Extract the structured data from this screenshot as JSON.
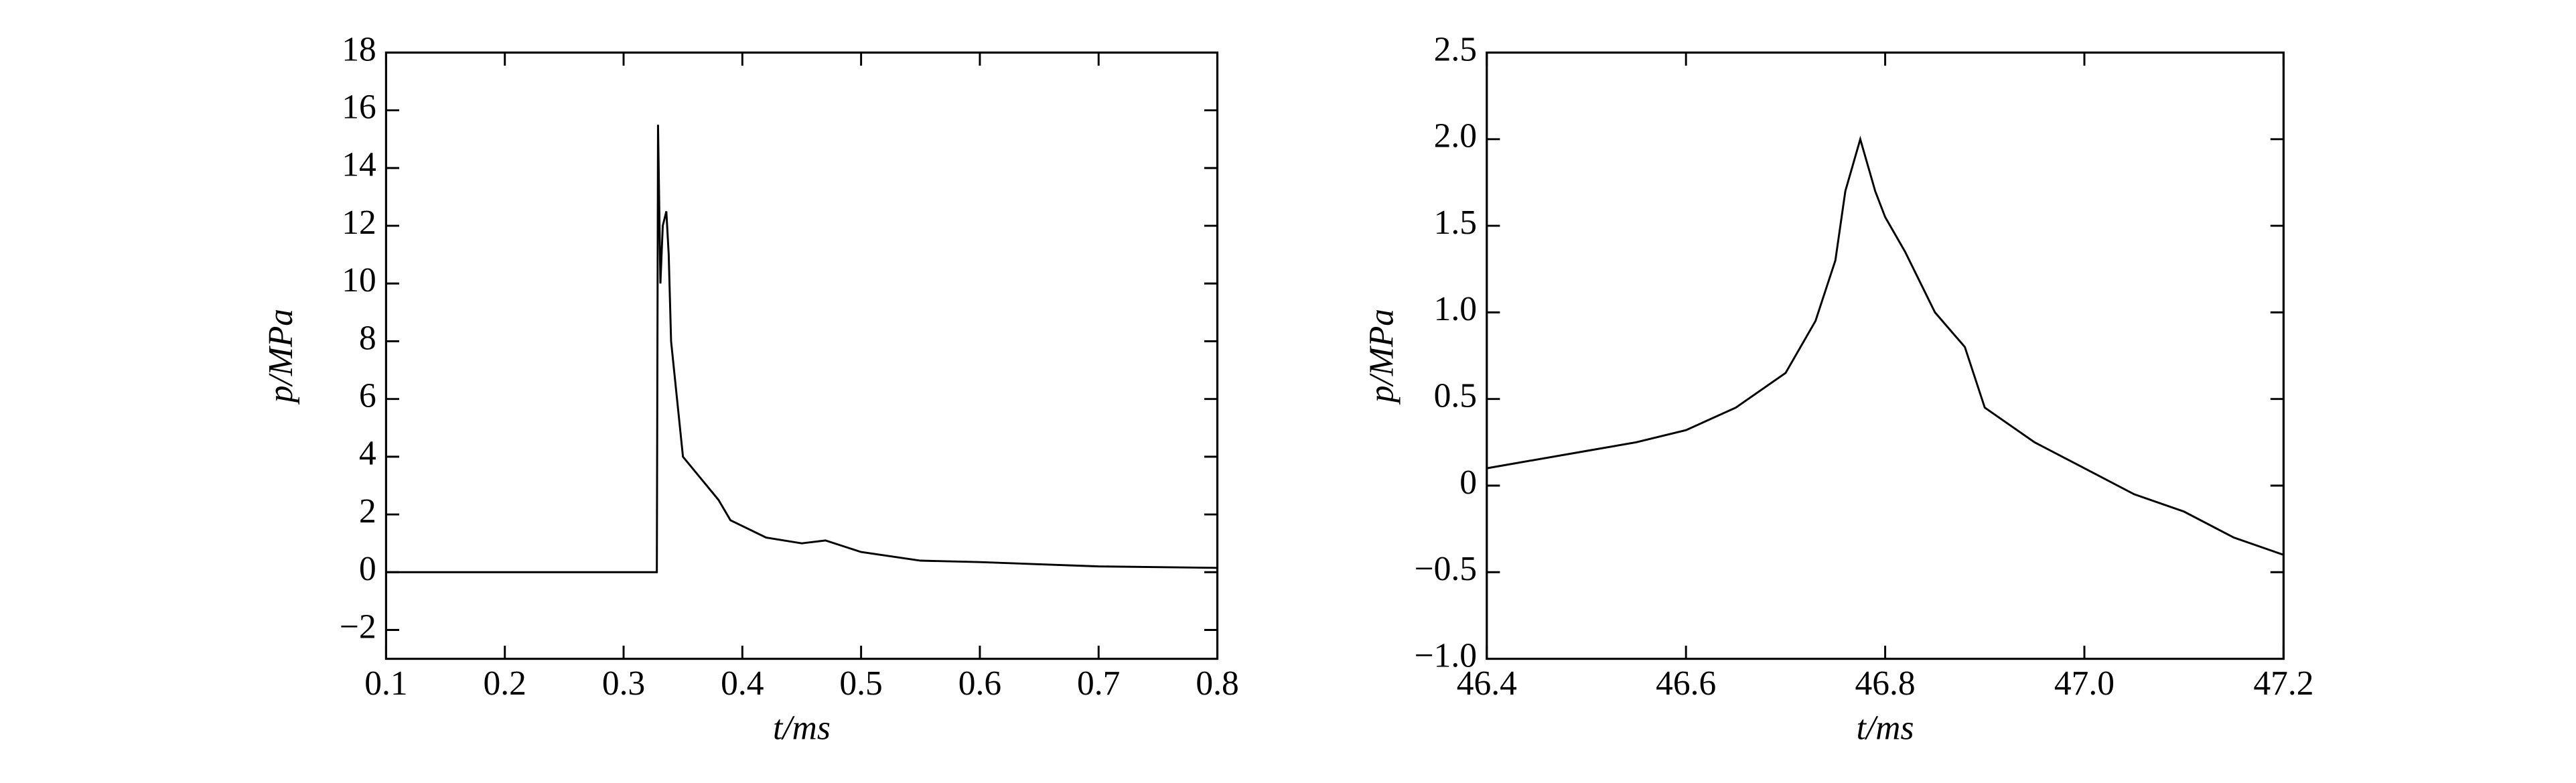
{
  "chart_data": [
    {
      "type": "line",
      "xlabel": "t/ms",
      "ylabel": "p/MPa",
      "xlim": [
        0.1,
        0.8
      ],
      "xticks": [
        0.1,
        0.2,
        0.3,
        0.4,
        0.5,
        0.6,
        0.7,
        0.8
      ],
      "ylim": [
        -3,
        18
      ],
      "yticks": [
        {
          "value": -2,
          "label": "−2"
        },
        0,
        2,
        4,
        6,
        8,
        10,
        12,
        14,
        16,
        18
      ],
      "series": [
        {
          "color": "#000000",
          "x": [
            0.1,
            0.15,
            0.2,
            0.25,
            0.3,
            0.328,
            0.329,
            0.331,
            0.333,
            0.336,
            0.338,
            0.34,
            0.345,
            0.35,
            0.36,
            0.37,
            0.38,
            0.39,
            0.4,
            0.42,
            0.45,
            0.47,
            0.5,
            0.55,
            0.6,
            0.7,
            0.8
          ],
          "values": [
            0,
            0,
            0,
            0,
            0,
            0,
            15.5,
            10,
            12,
            12.5,
            11,
            8,
            6,
            4,
            3.5,
            3,
            2.5,
            1.8,
            1.6,
            1.2,
            1,
            1.1,
            0.7,
            0.4,
            0.35,
            0.2,
            0.15
          ]
        }
      ]
    },
    {
      "type": "line",
      "xlabel": "t/ms",
      "ylabel": "p/MPa",
      "xlim": [
        46.4,
        47.2
      ],
      "xticks": [
        46.4,
        46.6,
        46.8,
        {
          "value": 47,
          "label": "47.0"
        },
        47.2
      ],
      "ylim": [
        -1,
        2.5
      ],
      "yticks": [
        {
          "value": -1,
          "label": "−1.0"
        },
        {
          "value": -0.5,
          "label": "−0.5"
        },
        0,
        0.5,
        {
          "value": 1,
          "label": "1.0"
        },
        1.5,
        {
          "value": 2,
          "label": "2.0"
        },
        2.5
      ],
      "series": [
        {
          "color": "#000000",
          "x": [
            46.4,
            46.45,
            46.5,
            46.55,
            46.6,
            46.65,
            46.7,
            46.73,
            46.75,
            46.76,
            46.775,
            46.79,
            46.8,
            46.82,
            46.85,
            46.88,
            46.9,
            46.95,
            47.0,
            47.05,
            47.1,
            47.15,
            47.2
          ],
          "values": [
            0.1,
            0.15,
            0.2,
            0.25,
            0.32,
            0.45,
            0.65,
            0.95,
            1.3,
            1.7,
            2.0,
            1.7,
            1.55,
            1.35,
            1.0,
            0.8,
            0.45,
            0.25,
            0.1,
            -0.05,
            -0.15,
            -0.3,
            -0.4
          ]
        }
      ]
    }
  ]
}
